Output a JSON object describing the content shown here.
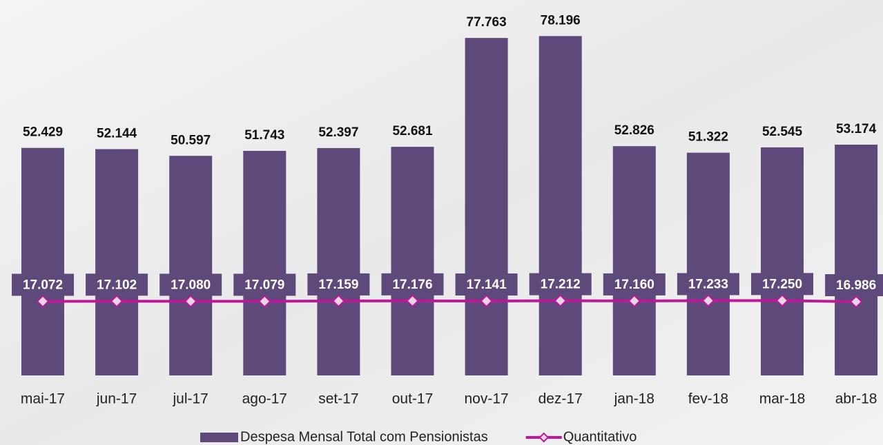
{
  "chart_data": {
    "type": "bar",
    "categories": [
      "mai-17",
      "jun-17",
      "jul-17",
      "ago-17",
      "set-17",
      "out-17",
      "nov-17",
      "dez-17",
      "jan-18",
      "fev-18",
      "mar-18",
      "abr-18"
    ],
    "series": [
      {
        "name": "Despesa Mensal Total com Pensionistas",
        "type": "bar",
        "color": "#5d4a7a",
        "values": [
          52429,
          52144,
          50597,
          51743,
          52397,
          52681,
          77763,
          78196,
          52826,
          51322,
          52545,
          53174
        ],
        "value_labels": [
          "52.429",
          "52.144",
          "50.597",
          "51.743",
          "52.397",
          "52.681",
          "77.763",
          "78.196",
          "52.826",
          "51.322",
          "52.545",
          "53.174"
        ]
      },
      {
        "name": "Quantitativo",
        "type": "line",
        "color": "#c0179a",
        "values": [
          17072,
          17102,
          17080,
          17079,
          17159,
          17176,
          17141,
          17212,
          17160,
          17233,
          17250,
          16986
        ],
        "value_labels": [
          "17.072",
          "17.102",
          "17.080",
          "17.079",
          "17.159",
          "17.176",
          "17.141",
          "17.212",
          "17.160",
          "17.233",
          "17.250",
          "16.986"
        ]
      }
    ],
    "ylim": [
      0,
      80000
    ],
    "legend": "bottom"
  }
}
